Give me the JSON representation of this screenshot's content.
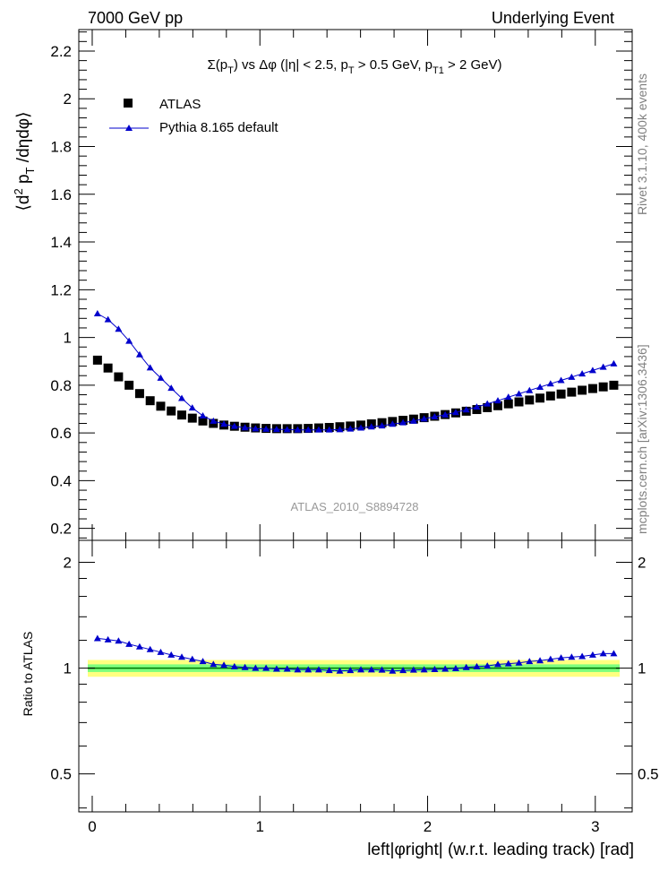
{
  "header": {
    "left_label": "7000 GeV pp",
    "right_label": "Underlying Event"
  },
  "side_labels": {
    "rivet": "Rivet 3.1.10,  400k events",
    "mcplots": "mcplots.cern.ch [arXiv:1306.3436]"
  },
  "chart_data": [
    {
      "type": "scatter",
      "panel": "main",
      "title": "Σ(p_T) vs Δφ (|η| < 2.5, p_T > 0.5 GeV, p_T1 > 2 GeV)",
      "title_parts": {
        "pre": "Σ(p",
        "sub1": "T",
        "mid1": ") vs Δφ (|η| < 2.5, p",
        "sub2": "T",
        "mid2": " > 0.5 GeV, p",
        "sub3": "T1",
        "post": " > 2 GeV)"
      },
      "ylabel": "⟨d² p_T /dηdφ⟩",
      "ylabel_parts": {
        "pre": "⟨d",
        "sup": "2",
        "mid": " p",
        "sub": "T",
        "post": " /dηdφ⟩"
      },
      "analysis_label": "ATLAS_2010_S8894728",
      "xlim": [
        -0.08,
        3.22
      ],
      "ylim": [
        0.15,
        2.29
      ],
      "yticks": [
        0.2,
        0.4,
        0.6,
        0.8,
        1.0,
        1.2,
        1.4,
        1.6,
        1.8,
        2.0,
        2.2
      ],
      "ytick_labels": [
        "0.2",
        "0.4",
        "0.6",
        "0.8",
        "1",
        "1.2",
        "1.4",
        "1.6",
        "1.8",
        "2",
        "2.2"
      ],
      "legend_position": "top-left",
      "series": [
        {
          "name": "ATLAS",
          "marker": "square",
          "color": "#000000",
          "x": [
            0.0314,
            0.0942,
            0.157,
            0.2199,
            0.2827,
            0.3456,
            0.4084,
            0.4712,
            0.5341,
            0.5969,
            0.6597,
            0.7226,
            0.7854,
            0.8482,
            0.9111,
            0.9739,
            1.0367,
            1.0996,
            1.1624,
            1.2252,
            1.2881,
            1.3509,
            1.4137,
            1.4766,
            1.5394,
            1.6022,
            1.6651,
            1.7279,
            1.7907,
            1.8536,
            1.9164,
            1.9792,
            2.0421,
            2.1049,
            2.1677,
            2.2306,
            2.2934,
            2.3562,
            2.4191,
            2.4819,
            2.5447,
            2.6076,
            2.6704,
            2.7332,
            2.7961,
            2.8589,
            2.9217,
            2.9846,
            3.0474,
            3.1102
          ],
          "values": [
            0.905,
            0.872,
            0.835,
            0.8,
            0.765,
            0.735,
            0.712,
            0.692,
            0.675,
            0.662,
            0.65,
            0.64,
            0.633,
            0.628,
            0.624,
            0.621,
            0.619,
            0.618,
            0.618,
            0.618,
            0.619,
            0.621,
            0.623,
            0.626,
            0.629,
            0.633,
            0.638,
            0.643,
            0.648,
            0.653,
            0.658,
            0.664,
            0.67,
            0.677,
            0.684,
            0.691,
            0.698,
            0.706,
            0.714,
            0.722,
            0.73,
            0.738,
            0.746,
            0.755,
            0.763,
            0.771,
            0.779,
            0.786,
            0.793,
            0.8
          ]
        },
        {
          "name": "Pythia 8.165 default",
          "marker": "triangle",
          "color": "#0000cc",
          "x": [
            0.0314,
            0.0942,
            0.157,
            0.2199,
            0.2827,
            0.3456,
            0.4084,
            0.4712,
            0.5341,
            0.5969,
            0.6597,
            0.7226,
            0.7854,
            0.8482,
            0.9111,
            0.9739,
            1.0367,
            1.0996,
            1.1624,
            1.2252,
            1.2881,
            1.3509,
            1.4137,
            1.4766,
            1.5394,
            1.6022,
            1.6651,
            1.7279,
            1.7907,
            1.8536,
            1.9164,
            1.9792,
            2.0421,
            2.1049,
            2.1677,
            2.2306,
            2.2934,
            2.3562,
            2.4191,
            2.4819,
            2.5447,
            2.6076,
            2.6704,
            2.7332,
            2.7961,
            2.8589,
            2.9217,
            2.9846,
            3.0474,
            3.1102
          ],
          "values": [
            1.1,
            1.075,
            1.035,
            0.985,
            0.928,
            0.873,
            0.83,
            0.788,
            0.745,
            0.705,
            0.672,
            0.65,
            0.637,
            0.628,
            0.622,
            0.618,
            0.616,
            0.615,
            0.614,
            0.613,
            0.613,
            0.613,
            0.613,
            0.614,
            0.617,
            0.621,
            0.626,
            0.63,
            0.637,
            0.643,
            0.65,
            0.659,
            0.668,
            0.676,
            0.686,
            0.697,
            0.709,
            0.722,
            0.735,
            0.75,
            0.764,
            0.778,
            0.792,
            0.806,
            0.82,
            0.834,
            0.848,
            0.862,
            0.876,
            0.89
          ]
        }
      ]
    },
    {
      "type": "line",
      "panel": "ratio",
      "ylabel": "Ratio to ATLAS",
      "xlabel": "left|φright| (w.r.t. leading track) [rad]",
      "xlim": [
        -0.08,
        3.22
      ],
      "ylim": [
        0.39,
        2.31
      ],
      "ylog": true,
      "yticks": [
        0.5,
        1,
        2
      ],
      "ytick_labels": [
        "0.5",
        "1",
        "2"
      ],
      "xticks": [
        0,
        1,
        2,
        3
      ],
      "xtick_labels": [
        "0",
        "1",
        "2",
        "3"
      ],
      "band_inner": [
        0.975,
        1.025
      ],
      "band_outer": [
        0.945,
        1.055
      ],
      "band_inner_color": "#7dff7d",
      "band_outer_color": "#ffff80",
      "series": [
        {
          "name": "Pythia 8.165 default / ATLAS",
          "marker": "triangle",
          "color": "#0000cc",
          "x": [
            0.0314,
            0.0942,
            0.157,
            0.2199,
            0.2827,
            0.3456,
            0.4084,
            0.4712,
            0.5341,
            0.5969,
            0.6597,
            0.7226,
            0.7854,
            0.8482,
            0.9111,
            0.9739,
            1.0367,
            1.0996,
            1.1624,
            1.2252,
            1.2881,
            1.3509,
            1.4137,
            1.4766,
            1.5394,
            1.6022,
            1.6651,
            1.7279,
            1.7907,
            1.8536,
            1.9164,
            1.9792,
            2.0421,
            2.1049,
            2.1677,
            2.2306,
            2.2934,
            2.3562,
            2.4191,
            2.4819,
            2.5447,
            2.6076,
            2.6704,
            2.7332,
            2.7961,
            2.8589,
            2.9217,
            2.9846,
            3.0474,
            3.1102
          ],
          "values": [
            1.215,
            1.205,
            1.195,
            1.17,
            1.15,
            1.13,
            1.11,
            1.09,
            1.075,
            1.06,
            1.045,
            1.025,
            1.02,
            1.01,
            1.005,
            1.0,
            1.0,
            0.995,
            0.995,
            0.99,
            0.99,
            0.99,
            0.985,
            0.982,
            0.985,
            0.99,
            0.99,
            0.988,
            0.982,
            0.985,
            0.988,
            0.99,
            0.992,
            0.995,
            0.998,
            1.005,
            1.01,
            1.015,
            1.025,
            1.03,
            1.035,
            1.045,
            1.05,
            1.06,
            1.07,
            1.075,
            1.08,
            1.09,
            1.1,
            1.1
          ]
        }
      ]
    }
  ]
}
